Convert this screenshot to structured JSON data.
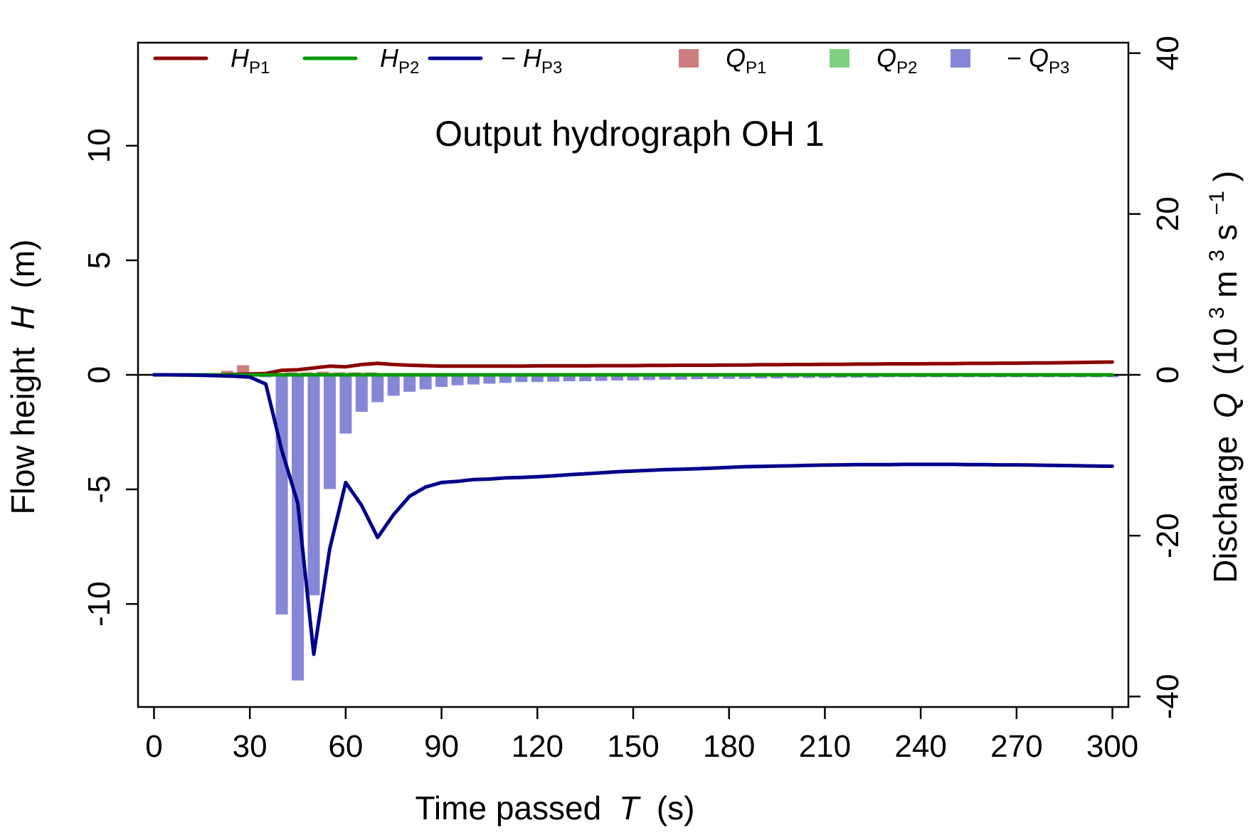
{
  "chart_data": {
    "type": "bar",
    "title": "Output hydrograph OH 1",
    "title_color": "#a020f0",
    "xlabel": "Time passed",
    "xlabel_symbol": "T",
    "xlabel_unit": "(s)",
    "ylabel_left": "Flow height",
    "ylabel_left_symbol": "H",
    "ylabel_left_unit": "(m)",
    "ylabel_right": "Discharge",
    "ylabel_right_symbol": "Q",
    "ylabel_right_unit_open": "(10",
    "ylabel_right_unit_exp": "3",
    "ylabel_right_unit_mid": " m",
    "ylabel_right_unit_exp2": "3",
    "ylabel_right_unit_mid2": " s",
    "ylabel_right_unit_exp3": "−1",
    "ylabel_right_unit_close": ")",
    "xlim": [
      -5,
      305
    ],
    "ylim_left": [
      -14.5,
      14.5
    ],
    "ylim_right": [
      -41.3,
      41.3
    ],
    "x_ticks": [
      0,
      30,
      60,
      90,
      120,
      150,
      180,
      210,
      240,
      270,
      300
    ],
    "x_tick_labels": [
      "0",
      "30",
      "60",
      "90",
      "120",
      "150",
      "180",
      "210",
      "240",
      "270",
      "300"
    ],
    "y_left_ticks": [
      -10,
      -5,
      0,
      5,
      10
    ],
    "y_left_tick_labels": [
      "-10",
      "-5",
      "0",
      "5",
      "10"
    ],
    "y_right_ticks": [
      -40,
      -20,
      0,
      20,
      40
    ],
    "y_right_tick_labels": [
      "-40",
      "-20",
      "0",
      "20",
      "40"
    ],
    "legend_placement": "top",
    "legend": [
      {
        "kind": "line",
        "prefix": "",
        "symbol": "H",
        "sub": "P1",
        "color": "#8b0000"
      },
      {
        "kind": "line",
        "prefix": "",
        "symbol": "H",
        "sub": "P2",
        "color": "#009900"
      },
      {
        "kind": "line",
        "prefix": "− ",
        "symbol": "H",
        "sub": "P3",
        "color": "#00008b"
      },
      {
        "kind": "bar",
        "prefix": "",
        "symbol": "Q",
        "sub": "P1",
        "color": "#cd7f7f"
      },
      {
        "kind": "bar",
        "prefix": "",
        "symbol": "Q",
        "sub": "P2",
        "color": "#80d080"
      },
      {
        "kind": "bar",
        "prefix": "− ",
        "symbol": "Q",
        "sub": "P3",
        "color": "#8686d6"
      }
    ],
    "x": [
      0,
      5,
      10,
      15,
      20,
      25,
      30,
      35,
      40,
      45,
      50,
      55,
      60,
      65,
      70,
      75,
      80,
      85,
      90,
      95,
      100,
      105,
      110,
      115,
      120,
      125,
      130,
      135,
      140,
      145,
      150,
      155,
      160,
      165,
      170,
      175,
      180,
      185,
      190,
      195,
      200,
      205,
      210,
      215,
      220,
      225,
      230,
      235,
      240,
      245,
      250,
      255,
      260,
      265,
      270,
      275,
      280,
      285,
      290,
      295,
      300
    ],
    "lines": [
      {
        "name": "HP1",
        "color": "#8b0000",
        "values": [
          0,
          0,
          0,
          0,
          0,
          0.02,
          0.04,
          0.06,
          0.2,
          0.22,
          0.3,
          0.38,
          0.35,
          0.45,
          0.5,
          0.45,
          0.42,
          0.4,
          0.38,
          0.38,
          0.38,
          0.38,
          0.38,
          0.38,
          0.39,
          0.39,
          0.39,
          0.39,
          0.4,
          0.4,
          0.4,
          0.41,
          0.41,
          0.42,
          0.42,
          0.42,
          0.43,
          0.43,
          0.44,
          0.44,
          0.45,
          0.45,
          0.46,
          0.46,
          0.47,
          0.47,
          0.48,
          0.48,
          0.48,
          0.49,
          0.49,
          0.5,
          0.5,
          0.51,
          0.51,
          0.52,
          0.52,
          0.53,
          0.54,
          0.55,
          0.56
        ]
      },
      {
        "name": "HP2",
        "color": "#009900",
        "values": [
          0,
          0,
          0,
          0,
          0,
          0,
          0,
          0,
          0,
          0,
          0,
          0,
          0,
          0,
          0,
          0,
          0,
          0,
          0,
          0,
          0,
          0,
          0,
          0,
          0,
          0,
          0,
          0,
          0,
          0,
          0,
          0,
          0,
          0,
          0,
          0,
          0,
          0,
          0,
          0,
          0,
          0,
          0,
          0,
          0,
          0,
          0,
          0,
          0,
          0,
          0,
          0,
          0,
          0,
          0,
          0,
          0,
          0,
          0,
          0,
          0
        ]
      },
      {
        "name": "-HP3",
        "color": "#00008b",
        "values": [
          0,
          0,
          -0.01,
          -0.02,
          -0.04,
          -0.06,
          -0.1,
          -0.4,
          -3.3,
          -5.6,
          -12.2,
          -7.6,
          -4.7,
          -5.7,
          -7.1,
          -6.1,
          -5.3,
          -4.9,
          -4.7,
          -4.65,
          -4.57,
          -4.55,
          -4.5,
          -4.48,
          -4.45,
          -4.41,
          -4.36,
          -4.32,
          -4.28,
          -4.23,
          -4.2,
          -4.17,
          -4.14,
          -4.12,
          -4.1,
          -4.07,
          -4.04,
          -4.01,
          -4.0,
          -3.98,
          -3.97,
          -3.95,
          -3.94,
          -3.93,
          -3.92,
          -3.92,
          -3.92,
          -3.91,
          -3.91,
          -3.91,
          -3.91,
          -3.92,
          -3.92,
          -3.93,
          -3.93,
          -3.94,
          -3.95,
          -3.96,
          -3.97,
          -3.98,
          -3.99
        ]
      }
    ],
    "bars": [
      {
        "name": "QP1",
        "color": "#cd7f7f",
        "values": [
          0,
          0,
          0,
          0,
          0,
          0.5,
          1.2,
          0.3,
          0.2,
          0.3,
          0.3,
          0.4,
          0.3,
          0.3,
          0.3,
          0.2,
          0.2,
          0.2,
          0.2,
          0.2,
          0.1,
          0.1,
          0.1,
          0.1,
          0.1,
          0.1,
          0.1,
          0.1,
          0.1,
          0.1,
          0.1,
          0.1,
          0.1,
          0.1,
          0.1,
          0.1,
          0.1,
          0.1,
          0.1,
          0.1,
          0.1,
          0.1,
          0.1,
          0.1,
          0.1,
          0.1,
          0.1,
          0.1,
          0.1,
          0.1,
          0.1,
          0.1,
          0.1,
          0.1,
          0.1,
          0.1,
          0.1,
          0.1,
          0.1,
          0.1,
          0.1
        ]
      },
      {
        "name": "QP2",
        "color": "#80d080",
        "values": [
          0,
          0,
          0,
          0,
          0,
          0,
          0,
          0,
          0,
          0,
          0,
          0,
          0,
          0,
          0,
          0,
          0,
          0,
          0,
          0,
          0,
          0,
          0,
          0,
          0,
          0,
          0,
          0,
          0,
          0,
          0,
          0,
          0,
          0,
          0,
          0,
          0,
          0,
          0,
          0,
          0,
          0,
          0,
          0,
          0,
          0,
          0,
          0,
          0,
          0,
          0,
          0,
          0,
          0,
          0,
          0,
          0,
          0,
          0,
          0,
          0
        ]
      },
      {
        "name": "-QP3",
        "color": "#8686d6",
        "values": [
          0,
          0,
          0,
          0,
          0,
          0,
          -0.1,
          -0.3,
          -29.8,
          -38.0,
          -27.4,
          -14.2,
          -7.3,
          -4.6,
          -3.4,
          -2.6,
          -2.1,
          -1.8,
          -1.5,
          -1.3,
          -1.2,
          -1.1,
          -1.0,
          -0.9,
          -0.9,
          -0.85,
          -0.8,
          -0.8,
          -0.75,
          -0.7,
          -0.7,
          -0.65,
          -0.6,
          -0.6,
          -0.55,
          -0.5,
          -0.5,
          -0.5,
          -0.45,
          -0.45,
          -0.4,
          -0.4,
          -0.4,
          -0.35,
          -0.35,
          -0.35,
          -0.3,
          -0.3,
          -0.3,
          -0.3,
          -0.3,
          -0.3,
          -0.3,
          -0.3,
          -0.3,
          -0.3,
          -0.3,
          -0.3,
          -0.3,
          -0.3,
          -0.3
        ]
      }
    ]
  }
}
